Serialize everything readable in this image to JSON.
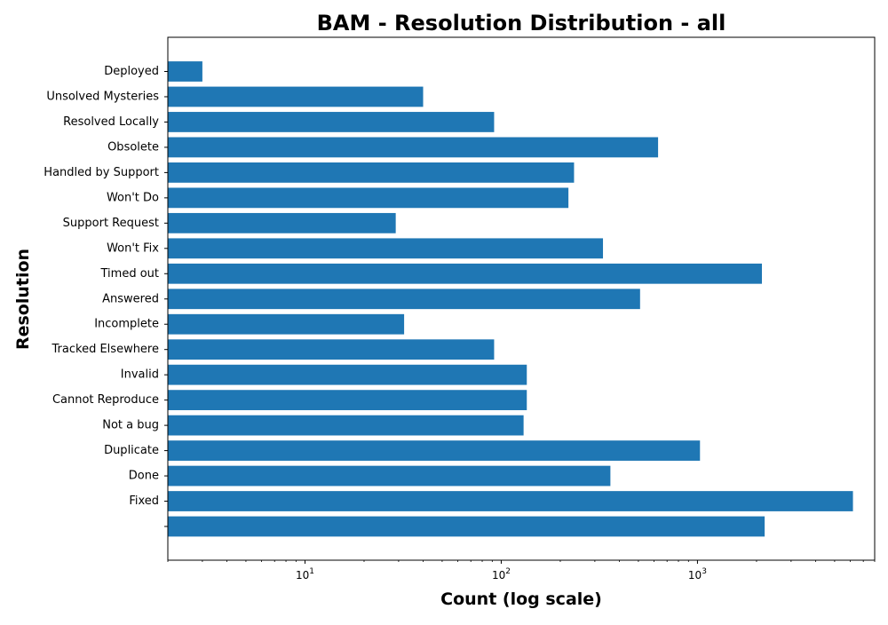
{
  "chart_data": {
    "type": "bar",
    "orientation": "horizontal",
    "title": "BAM - Resolution Distribution - all",
    "xlabel": "Count (log scale)",
    "ylabel": "Resolution",
    "xscale": "log",
    "xlim": [
      2,
      8000
    ],
    "xticks": [
      10,
      100,
      1000
    ],
    "xtick_labels": [
      {
        "base": "10",
        "exp": "1"
      },
      {
        "base": "10",
        "exp": "2"
      },
      {
        "base": "10",
        "exp": "3"
      }
    ],
    "grid": false,
    "bar_color": "#1f77b4",
    "categories": [
      "",
      "Fixed",
      "Done",
      "Duplicate",
      "Not a bug",
      "Cannot Reproduce",
      "Invalid",
      "Tracked Elsewhere",
      "Incomplete",
      "Answered",
      "Timed out",
      "Won't Fix",
      "Support Request",
      "Won't Do",
      "Handled by Support",
      "Obsolete",
      "Resolved Locally",
      "Unsolved Mysteries",
      "Deployed"
    ],
    "values": [
      2200,
      6200,
      360,
      1030,
      130,
      135,
      135,
      92,
      32,
      510,
      2130,
      330,
      29,
      220,
      235,
      630,
      92,
      40,
      3
    ]
  }
}
